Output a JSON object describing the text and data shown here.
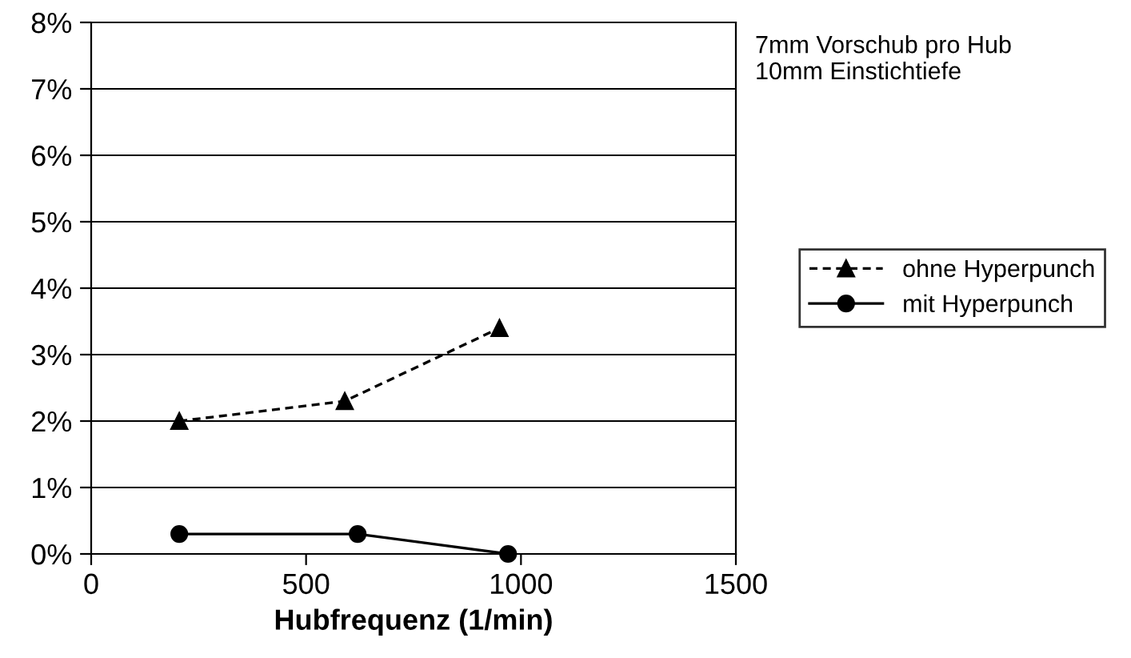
{
  "chart_data": {
    "type": "line",
    "xlabel": "Hubfrequenz (1/min)",
    "annotations": [
      "7mm Vorschub pro Hub\n10mm Einstichtiefe"
    ],
    "series": [
      {
        "name": "ohne Hyperpunch",
        "color": "#000000",
        "x": [
          205,
          590,
          950
        ],
        "values": [
          2.0,
          2.3,
          3.4
        ],
        "marker": "triangle",
        "line_style": "dashed"
      },
      {
        "name": "mit Hyperpunch",
        "color": "#000000",
        "x": [
          205,
          620,
          970
        ],
        "values": [
          0.3,
          0.3,
          0.0
        ],
        "marker": "circle",
        "line_style": "solid"
      }
    ],
    "xlim": [
      0,
      1500
    ],
    "xticks": [
      0,
      500,
      1000,
      1500
    ],
    "ylim": [
      0,
      8
    ],
    "yticks": [
      {
        "value": 0,
        "label": "0%"
      },
      {
        "value": 1,
        "label": "1%"
      },
      {
        "value": 2,
        "label": "2%"
      },
      {
        "value": 3,
        "label": "3%"
      },
      {
        "value": 4,
        "label": "4%"
      },
      {
        "value": 5,
        "label": "5%"
      },
      {
        "value": 6,
        "label": "6%"
      },
      {
        "value": 7,
        "label": "7%"
      },
      {
        "value": 8,
        "label": "8%"
      }
    ],
    "grid": "y",
    "legend": "right"
  }
}
